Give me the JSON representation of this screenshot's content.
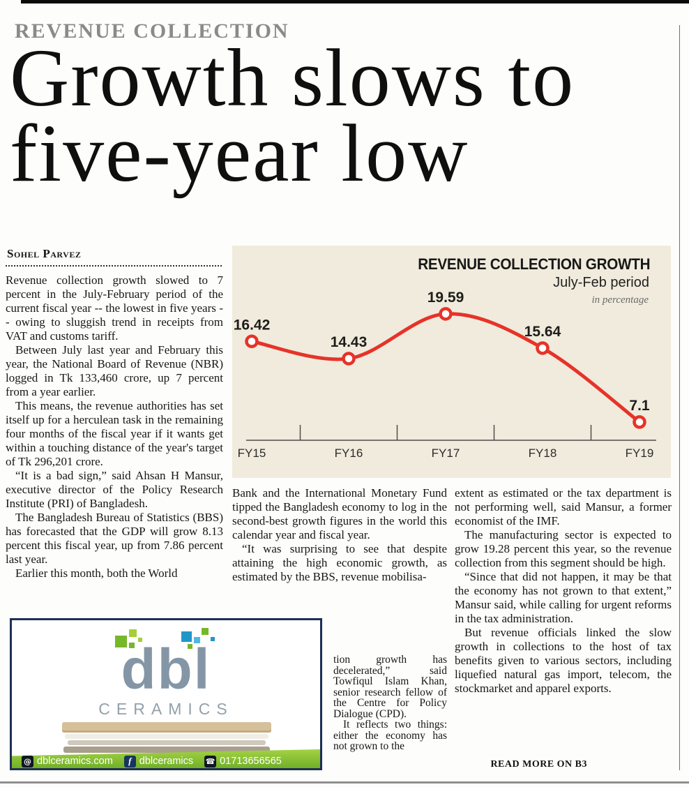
{
  "masthead": {
    "kicker": "REVENUE COLLECTION",
    "headline_line1": "Growth slows to",
    "headline_line2": "five-year low",
    "byline": "Sohel Parvez"
  },
  "article": {
    "col1_paragraphs": [
      "Revenue collection growth slowed to 7 percent in the July-February period of the current fiscal year -- the lowest in five years -- owing to sluggish trend in receipts from VAT and customs tariff.",
      "Between July last year and February this year, the National Board of Revenue (NBR) logged in Tk 133,460 crore, up 7 percent from a year earlier.",
      "This means, the revenue authorities has set itself up for a herculean task in the remaining four months of the fiscal year if it wants get within a touching distance of the year's target of Tk 296,201 crore.",
      "“It is a bad sign,” said Ahsan H Mansur, executive director of the Policy Research Institute (PRI) of Bangladesh.",
      "The Bangladesh Bureau of Statistics (BBS) has forecasted that the GDP will grow 8.13 percent this fiscal year, up from 7.86 percent last year.",
      "Earlier this month, both the World"
    ],
    "col2_top_paragraphs": [
      "Bank and the International Monetary Fund tipped the Bangladesh economy to log in the second-best growth figures in the world this calendar year and fiscal year.",
      "“It was surprising to see that despite attaining the high economic growth, as estimated by the BBS, revenue mobilisa-"
    ],
    "col2_wrap_paragraphs": [
      "tion growth has decelerated,” said Towfiqul Islam Khan, senior research fellow of the Centre for Policy Dialogue (CPD).",
      "It reflects two things: either the economy has not grown to the"
    ],
    "col3_paragraphs": [
      "extent as estimated or the tax department is not performing well, said Mansur, a former economist of the IMF.",
      "The manufacturing sector is expected to grow 19.28 percent this year, so the revenue collection from this segment should be high.",
      "“Since that did not happen, it may be that the economy has not grown to that extent,” Mansur said, while calling for urgent reforms in the tax administration.",
      "But revenue officials linked the slow growth in collections to the host of tax benefits given to various sectors, including liquefied natural gas import, telecom, the stockmarket and apparel exports."
    ],
    "read_more": "READ MORE ON B3"
  },
  "chart_data": {
    "type": "line",
    "title": "REVENUE COLLECTION GROWTH",
    "subtitle": "July-Feb period",
    "unit_note": "in percentage",
    "categories": [
      "FY15",
      "FY16",
      "FY17",
      "FY18",
      "FY19"
    ],
    "values": [
      16.42,
      14.43,
      19.59,
      15.64,
      7.1
    ],
    "labels": [
      "16.42",
      "14.43",
      "19.59",
      "15.64",
      "7.1"
    ],
    "ylim": [
      5,
      22
    ],
    "grid": false,
    "legend": "none",
    "line_color": "#e63329",
    "marker_fill": "#ffffff",
    "label_color": "#1d1d1b",
    "axis_color": "#4d4d4d",
    "background": "#f0ebdc"
  },
  "ad": {
    "brand": "dbl",
    "brand_subtitle": "CERAMICS",
    "contacts": {
      "website": "dblceramics.com",
      "facebook": "dblceramics",
      "phone": "01713656565"
    },
    "colors": {
      "green": "#76b82a",
      "light_green": "#a5ce39",
      "blue": "#2196c9",
      "light_blue": "#4db8e8",
      "brand": "#8496a6",
      "bar_top": "#a3d244",
      "bar_bottom": "#71b027",
      "border": "#1d2f55"
    }
  }
}
